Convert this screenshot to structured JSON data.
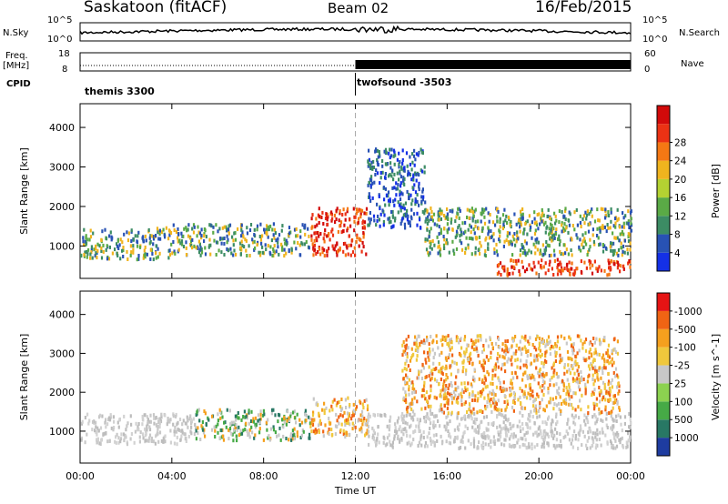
{
  "header": {
    "station": "Saskatoon (fitACF)",
    "beam": "Beam 02",
    "date": "16/Feb/2015"
  },
  "top_panels": {
    "nsky_label": "N.Sky",
    "nsearch_label": "N.Search",
    "noise_ticks": [
      "10^5",
      "10^0"
    ],
    "freq_label": "Freq.",
    "freq_unit": "[MHz]",
    "freq_ticks": [
      "18",
      "8"
    ],
    "nave_label": "Nave",
    "nave_ticks": [
      "60",
      "0"
    ],
    "cpid_label": "CPID",
    "cpid_segments": [
      "themis 3300",
      "twofsound -3503"
    ]
  },
  "chart_data": [
    {
      "type": "heatmap",
      "title": "Power",
      "xlabel": "Time UT",
      "ylabel": "Slant Range [km]",
      "x_ticks": [
        "00:00",
        "04:00",
        "08:00",
        "12:00",
        "16:00",
        "20:00",
        "00:00"
      ],
      "y_ticks": [
        1000,
        2000,
        3000,
        4000
      ],
      "ylim": [
        180,
        4600
      ],
      "colorbar": {
        "label": "Power [dB]",
        "ticks": [
          4,
          8,
          12,
          16,
          20,
          24,
          28
        ],
        "colors": [
          "#1430e6",
          "#2852b4",
          "#3c8c64",
          "#5aaa46",
          "#b4d232",
          "#f0b41e",
          "#f57814",
          "#eb3214",
          "#d20a0a"
        ]
      },
      "echo_regions": [
        {
          "t_start": 0.0,
          "t_end": 4.0,
          "range_start": 700,
          "range_end": 1500,
          "level": "medium"
        },
        {
          "t_start": 4.0,
          "t_end": 10.0,
          "range_start": 800,
          "range_end": 1600,
          "level": "medium"
        },
        {
          "t_start": 10.0,
          "t_end": 12.5,
          "range_start": 800,
          "range_end": 2000,
          "level": "high"
        },
        {
          "t_start": 12.5,
          "t_end": 15.0,
          "range_start": 1500,
          "range_end": 3500,
          "level": "low"
        },
        {
          "t_start": 15.0,
          "t_end": 24.0,
          "range_start": 800,
          "range_end": 2000,
          "level": "medium"
        },
        {
          "t_start": 18.0,
          "t_end": 24.0,
          "range_start": 300,
          "range_end": 700,
          "level": "high"
        }
      ]
    },
    {
      "type": "heatmap",
      "title": "Velocity",
      "xlabel": "Time UT",
      "ylabel": "Slant Range [km]",
      "x_ticks": [
        "00:00",
        "04:00",
        "08:00",
        "12:00",
        "16:00",
        "20:00",
        "00:00"
      ],
      "y_ticks": [
        1000,
        2000,
        3000,
        4000
      ],
      "ylim": [
        180,
        4600
      ],
      "colorbar": {
        "label": "Velocity [m s^-1]",
        "ticks": [
          1000,
          500,
          100,
          25,
          -25,
          -100,
          -500,
          -1000
        ],
        "colors": [
          "#1e3ca0",
          "#287864",
          "#46aa46",
          "#8cd250",
          "#c8c8c8",
          "#f0c83c",
          "#f5a01e",
          "#f06414",
          "#e61414"
        ]
      },
      "echo_regions": [
        {
          "t_start": 0.0,
          "t_end": 5.0,
          "range_start": 700,
          "range_end": 1500,
          "level": "ground"
        },
        {
          "t_start": 5.0,
          "t_end": 10.0,
          "range_start": 800,
          "range_end": 1600,
          "level": "mixed"
        },
        {
          "t_start": 10.0,
          "t_end": 12.5,
          "range_start": 900,
          "range_end": 1900,
          "level": "away"
        },
        {
          "t_start": 12.5,
          "t_end": 24.0,
          "range_start": 600,
          "range_end": 1500,
          "level": "ground"
        },
        {
          "t_start": 14.0,
          "t_end": 23.5,
          "range_start": 1500,
          "range_end": 3500,
          "level": "away"
        }
      ]
    }
  ]
}
